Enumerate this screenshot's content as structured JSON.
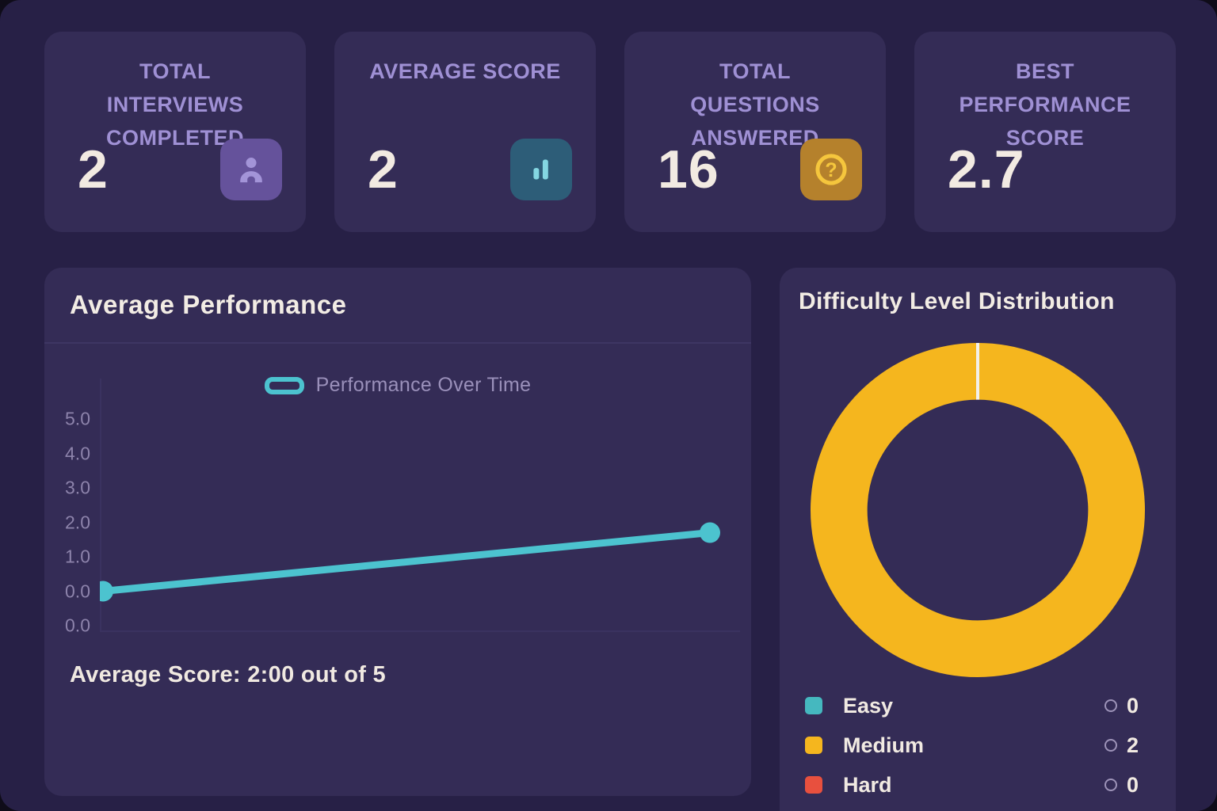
{
  "stats": {
    "cards": [
      {
        "title": "TOTAL INTERVIEWS COMPLETED",
        "value": "2",
        "icon": "user-icon"
      },
      {
        "title": "AVERAGE SCORE",
        "value": "2",
        "icon": "bar-chart-icon"
      },
      {
        "title": "TOTAL QUESTIONS ANSWERED",
        "value": "16",
        "icon": "question-icon"
      },
      {
        "title": "BEST PERFORMANCE SCORE",
        "value": "2.7",
        "icon": ""
      }
    ]
  },
  "performance": {
    "title": "Average Performance",
    "legend_label": "Performance Over Time",
    "caption": "Average Score: 2:00 out of 5"
  },
  "difficulty": {
    "title": "Difficulty Level Distribution",
    "legend": [
      {
        "label": "Easy",
        "count": "0",
        "color": "#45b8bf"
      },
      {
        "label": "Medium",
        "count": "2",
        "color": "#f5b61e"
      },
      {
        "label": "Hard",
        "count": "0",
        "color": "#e8503e"
      }
    ]
  },
  "colors": {
    "line_accent": "#4cc3cf",
    "donut_yellow": "#f5b61e",
    "easy_teal": "#45b8bf",
    "hard_red": "#e8503e",
    "slice_separator": "#f2f0ec",
    "axis": "#3a3260",
    "tick_text": "#8d83ab"
  },
  "chart_data": [
    {
      "type": "line",
      "title": "Average Performance",
      "series": [
        {
          "name": "Performance Over Time",
          "x": [
            0,
            1
          ],
          "values": [
            0.0,
            1.7
          ]
        }
      ],
      "xlabel": "",
      "ylabel": "",
      "ylim": [
        -1,
        5
      ],
      "y_tick_labels": [
        "5.0",
        "4.0",
        "3.0",
        "2.0",
        "1.0",
        "0.0",
        "0.0"
      ],
      "grid": false,
      "legend_position": "top",
      "annotations": [
        "Average Score: 2:00 out of 5"
      ]
    },
    {
      "type": "pie",
      "title": "Difficulty Level Distribution",
      "categories": [
        "Easy",
        "Medium",
        "Hard"
      ],
      "values": [
        0,
        2,
        0
      ],
      "colors": [
        "#45b8bf",
        "#f5b61e",
        "#e8503e"
      ],
      "donut": true,
      "legend_position": "bottom"
    }
  ]
}
